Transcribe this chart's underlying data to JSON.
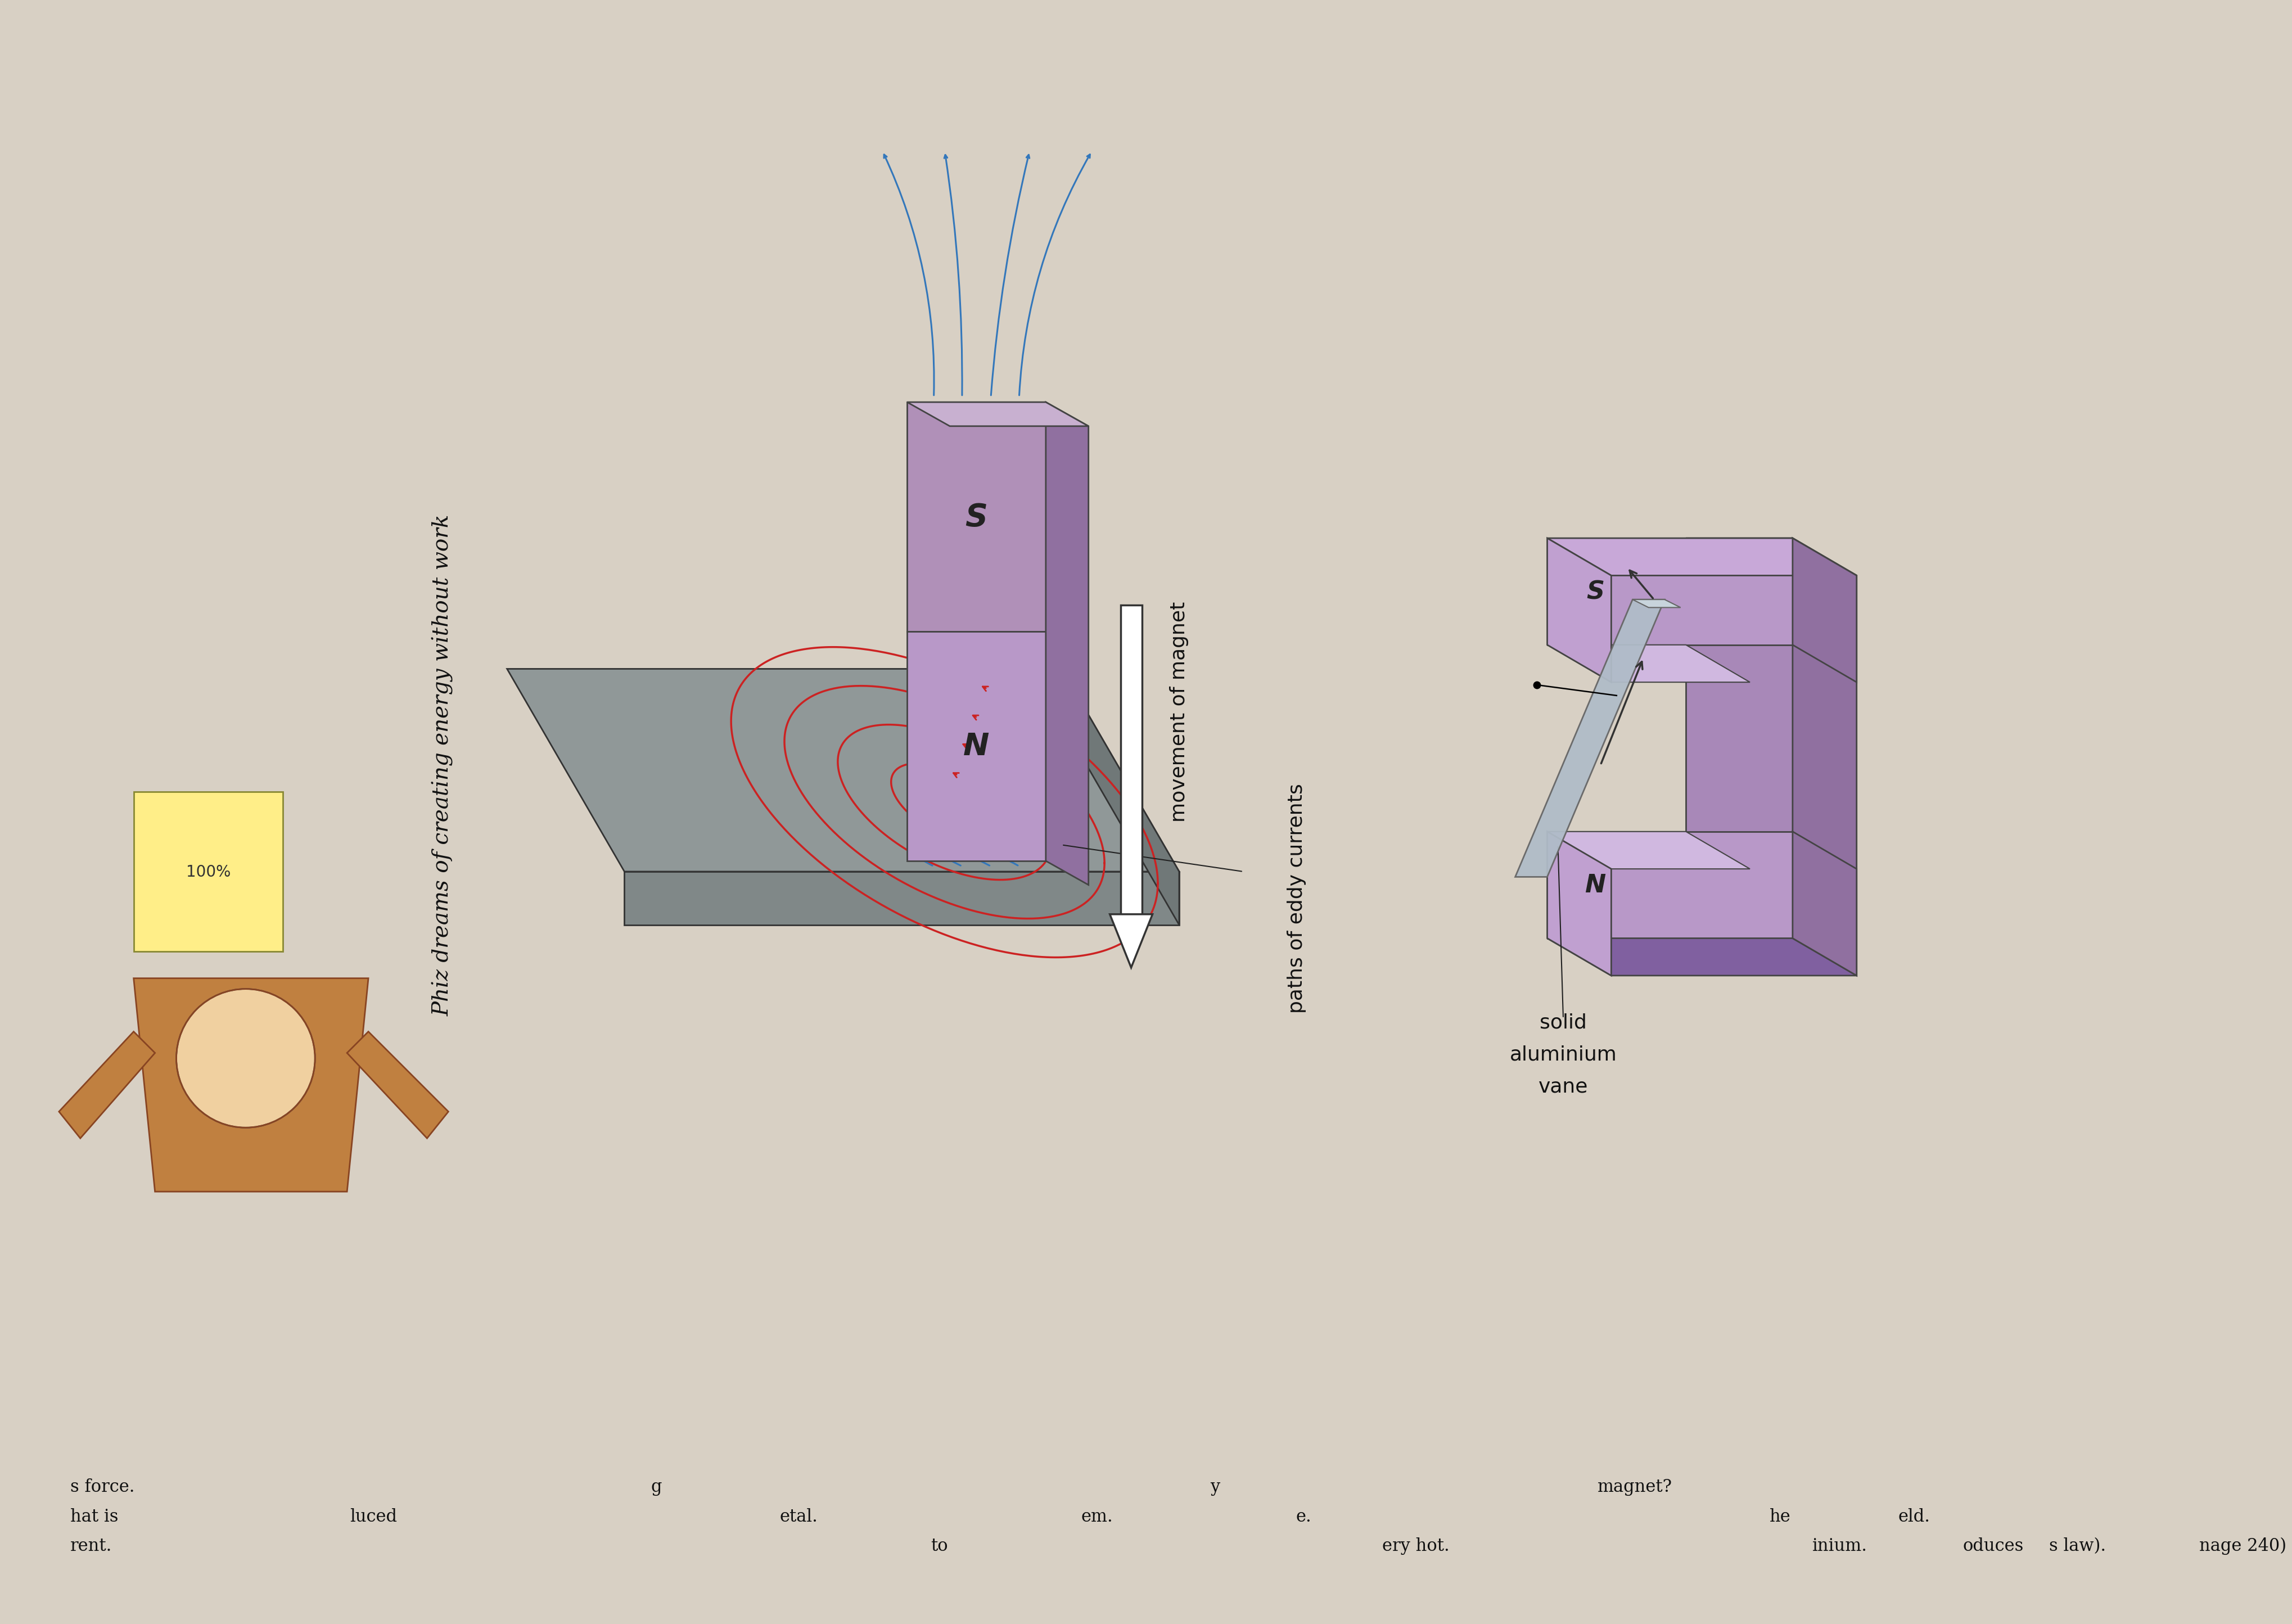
{
  "page_bg": "#d8d0c4",
  "magnet_front": "#b090b8",
  "magnet_side": "#9070a0",
  "magnet_top_face": "#c8b0d0",
  "magnet_dark": "#7a5a8a",
  "plate_top_color": "#909898",
  "plate_side_color": "#707878",
  "plate_front_color": "#808888",
  "eddy_color": "#cc2222",
  "field_line_color": "#3377bb",
  "arrow_color": "#333333",
  "label_color": "#111111",
  "title_text": "Phiz dreams of creating energy without work",
  "label_movement": "movement of magnet",
  "label_paths": "paths of eddy currents",
  "label_solid": "solid",
  "label_aluminium": "aluminium",
  "label_vane": "vane",
  "magnet_S_label": "S",
  "magnet_N_label": "N",
  "u_magnet_S_label": "S",
  "u_magnet_N_label": "N",
  "bottom_texts_left": [
    [
      60,
      65,
      "s force.",
      22
    ],
    [
      60,
      48,
      "hat is",
      22
    ],
    [
      60,
      30,
      "rent.",
      22
    ]
  ],
  "bottom_texts_mid_left": [
    [
      230,
      65,
      "luced",
      22
    ]
  ],
  "bottom_texts_center": [
    [
      430,
      78,
      "g",
      22
    ],
    [
      520,
      65,
      "etal.",
      22
    ],
    [
      600,
      50,
      "to",
      22
    ],
    [
      660,
      65,
      "em.",
      22
    ]
  ],
  "bottom_texts_right_center": [
    [
      750,
      78,
      "y",
      22
    ],
    [
      790,
      65,
      "e.",
      22
    ],
    [
      830,
      50,
      "ery hot.",
      22
    ]
  ],
  "bottom_texts_right": [
    [
      970,
      78,
      "magnet?",
      22
    ],
    [
      1080,
      65,
      "he",
      22
    ],
    [
      1100,
      48,
      "inium.",
      22
    ],
    [
      1140,
      78,
      "eld.",
      22
    ],
    [
      1175,
      65,
      "oduces",
      22
    ],
    [
      1220,
      50,
      "s law).",
      22
    ],
    [
      1310,
      50,
      "nage 240)",
      22
    ]
  ]
}
